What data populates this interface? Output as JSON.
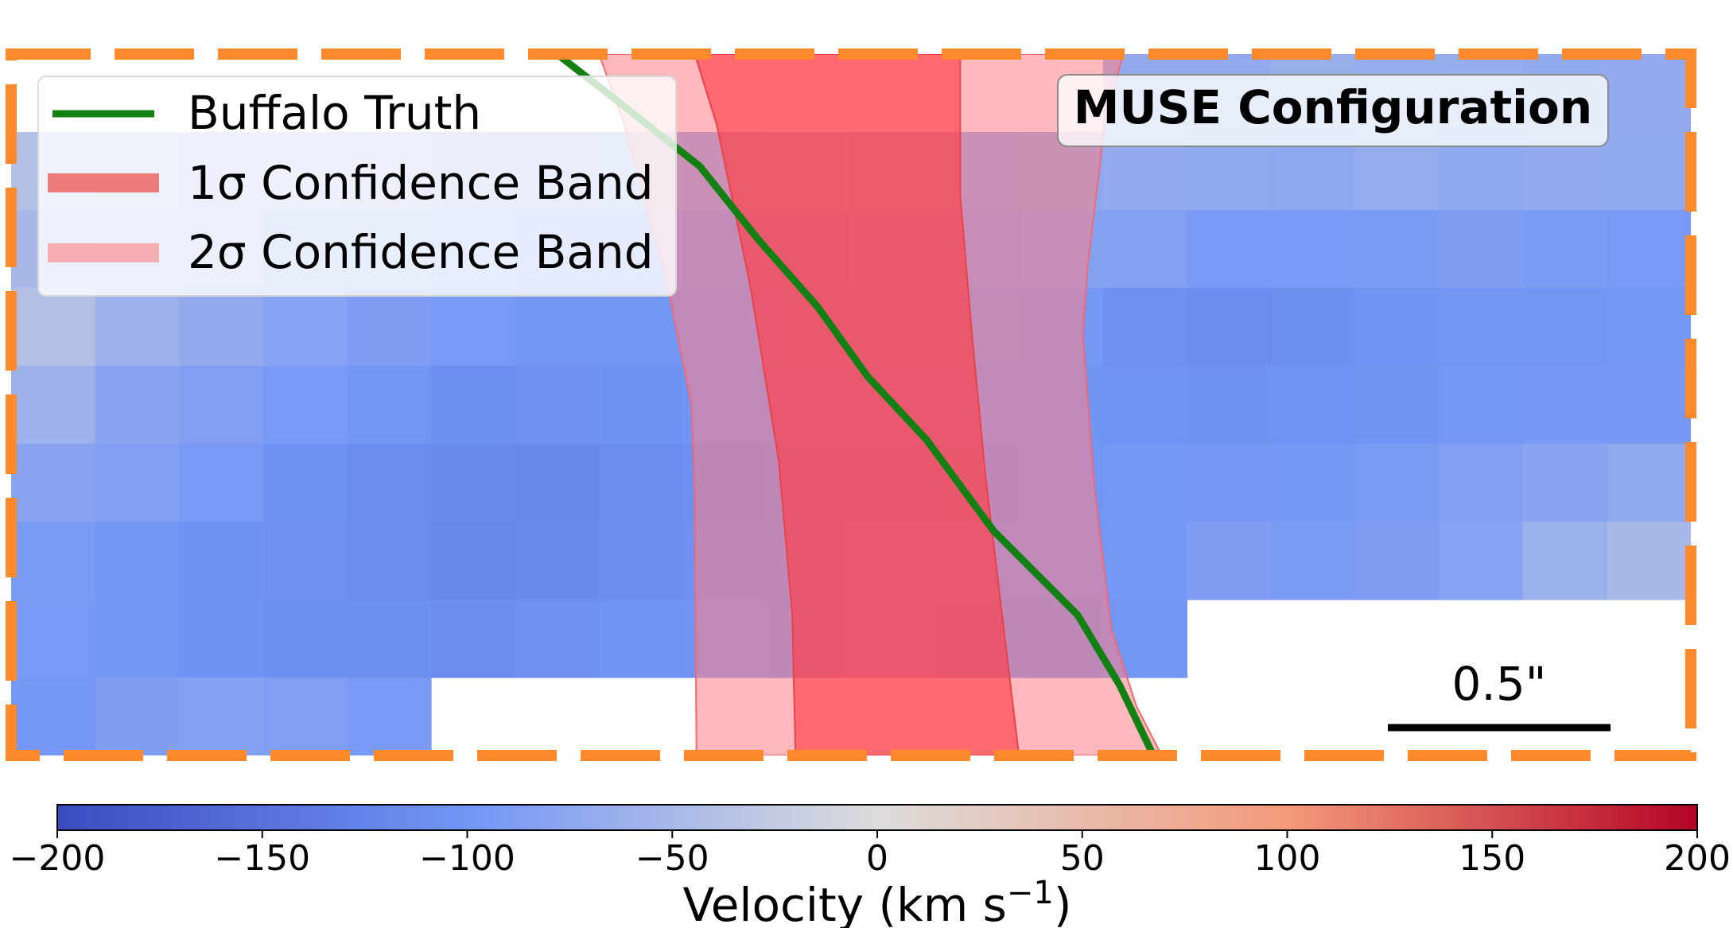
{
  "chart_data": {
    "type": "heatmap",
    "title": "",
    "annotation": "MUSE Configuration",
    "legend": {
      "placement": "top-left",
      "entries": [
        {
          "name": "truth",
          "label": "Buffalo Truth",
          "color": "#138013"
        },
        {
          "name": "band-1sigma",
          "label": "1σ Confidence Band",
          "color": "#f07b7b"
        },
        {
          "name": "band-2sigma",
          "label": "2σ Confidence Band",
          "color": "#f4aeb2"
        }
      ]
    },
    "scalebar_label": "0.5\"",
    "colorbar": {
      "label": "Velocity (km s",
      "label_sup": "−1",
      "label_end": ")",
      "range": [
        -200,
        200
      ],
      "ticks": [
        -200,
        -150,
        -100,
        -50,
        0,
        50,
        100,
        150,
        200
      ],
      "tick_labels": [
        "−200",
        "−150",
        "−100",
        "−50",
        "0",
        "50",
        "100",
        "150",
        "200"
      ]
    },
    "velocity_map": {
      "cols": 20,
      "rows": 9,
      "values": [
        [
          null,
          null,
          null,
          null,
          null,
          null,
          null,
          null,
          null,
          null,
          null,
          null,
          null,
          -70,
          -70,
          -65,
          -68,
          -66,
          -72,
          -70
        ],
        [
          -40,
          -45,
          -50,
          -48,
          -55,
          -65,
          -68,
          -72,
          -78,
          -75,
          -80,
          -78,
          -75,
          -70,
          -72,
          -75,
          -68,
          -74,
          -70,
          -72
        ],
        [
          -50,
          -55,
          -60,
          -70,
          -75,
          -82,
          -88,
          -90,
          -92,
          -95,
          -90,
          -88,
          -85,
          -85,
          -95,
          -95,
          -92,
          -90,
          -92,
          -95
        ],
        [
          -40,
          -60,
          -70,
          -82,
          -90,
          -95,
          -100,
          -100,
          -98,
          -96,
          -94,
          -95,
          -98,
          -108,
          -112,
          -110,
          -104,
          -100,
          -100,
          -98
        ],
        [
          -60,
          -78,
          -88,
          -95,
          -100,
          -110,
          -108,
          -105,
          -102,
          -100,
          -98,
          -98,
          -102,
          -104,
          -106,
          -104,
          -102,
          -98,
          -96,
          -96
        ],
        [
          -80,
          -88,
          -95,
          -105,
          -115,
          -118,
          -120,
          -115,
          -110,
          -108,
          -106,
          -104,
          -100,
          -98,
          -96,
          -98,
          -92,
          -88,
          -78,
          -72
        ],
        [
          -92,
          -100,
          -105,
          -108,
          -115,
          -120,
          -118,
          -112,
          -108,
          -106,
          -100,
          -100,
          -100,
          -98,
          -90,
          -92,
          -90,
          -82,
          -62,
          -50
        ],
        [
          -95,
          -100,
          -105,
          -110,
          -110,
          -112,
          -108,
          -104,
          -102,
          -105,
          -100,
          -105,
          -106,
          -100,
          null,
          null,
          null,
          null,
          null,
          null
        ],
        [
          -98,
          -90,
          -85,
          -88,
          -95,
          null,
          null,
          null,
          null,
          null,
          null,
          null,
          null,
          null,
          null,
          null,
          null,
          null,
          null,
          null
        ]
      ]
    },
    "truth_curve": [
      [
        0.325,
        0
      ],
      [
        0.36,
        0.065
      ],
      [
        0.41,
        0.16
      ],
      [
        0.445,
        0.265
      ],
      [
        0.48,
        0.36
      ],
      [
        0.51,
        0.46
      ],
      [
        0.545,
        0.55
      ],
      [
        0.585,
        0.68
      ],
      [
        0.635,
        0.8
      ],
      [
        0.66,
        0.9
      ],
      [
        0.68,
        1.0
      ]
    ],
    "band_2sigma": {
      "left": [
        [
          0.35,
          0
        ],
        [
          0.365,
          0.1
        ],
        [
          0.39,
          0.32
        ],
        [
          0.405,
          0.5
        ],
        [
          0.407,
          0.62
        ],
        [
          0.408,
          1.0
        ]
      ],
      "right": [
        [
          0.662,
          0
        ],
        [
          0.651,
          0.1
        ],
        [
          0.641,
          0.3
        ],
        [
          0.638,
          0.4
        ],
        [
          0.645,
          0.62
        ],
        [
          0.655,
          0.82
        ],
        [
          0.67,
          0.93
        ],
        [
          0.685,
          1.0
        ]
      ]
    },
    "band_1sigma": {
      "left": [
        [
          0.407,
          0
        ],
        [
          0.42,
          0.1
        ],
        [
          0.44,
          0.33
        ],
        [
          0.457,
          0.58
        ],
        [
          0.465,
          0.8
        ],
        [
          0.467,
          1.0
        ]
      ],
      "right": [
        [
          0.565,
          0
        ],
        [
          0.565,
          0.2
        ],
        [
          0.572,
          0.4
        ],
        [
          0.58,
          0.6
        ],
        [
          0.59,
          0.8
        ],
        [
          0.6,
          1.0
        ]
      ]
    }
  }
}
